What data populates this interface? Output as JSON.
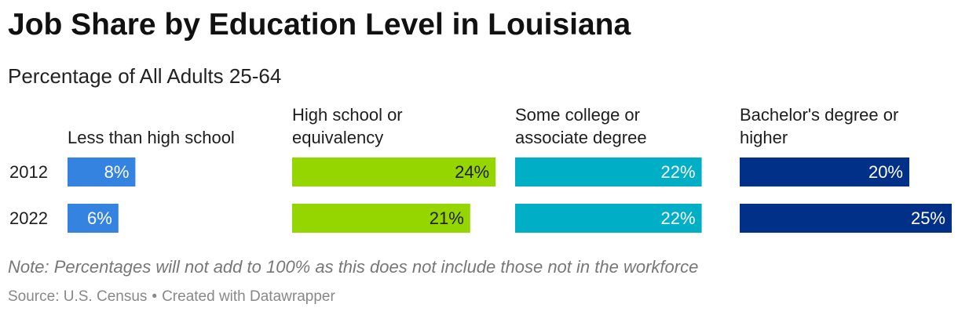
{
  "title": "Job Share by Education Level in Louisiana",
  "subtitle": "Percentage of All Adults 25-64",
  "note": "Note: Percentages will not add to 100% as this does not include those not in the workforce",
  "source": {
    "label": "Source: U.S. Census",
    "separator": "•",
    "credit": "Created with Datawrapper"
  },
  "chart_data": {
    "type": "bar",
    "orientation": "horizontal",
    "layout": "small multiples",
    "categories": [
      "2012",
      "2022"
    ],
    "value_suffix": "%",
    "grid": false,
    "legend": "none",
    "xlim": [
      0,
      25
    ],
    "series": [
      {
        "name": "Less than high school",
        "name_lines": [
          "Less than high school"
        ],
        "color": "#3483e0",
        "values": [
          8,
          6
        ]
      },
      {
        "name": "High school or equivalency",
        "name_lines": [
          "High school or",
          "equivalency"
        ],
        "color": "#96d600",
        "values": [
          24,
          21
        ]
      },
      {
        "name": "Some college or associate degree",
        "name_lines": [
          "Some college or",
          "associate degree"
        ],
        "color": "#00afc6",
        "values": [
          22,
          22
        ]
      },
      {
        "name": "Bachelor's degree or higher",
        "name_lines": [
          "Bachelor's degree or",
          "higher"
        ],
        "color": "#003087",
        "values": [
          20,
          25
        ]
      }
    ]
  }
}
